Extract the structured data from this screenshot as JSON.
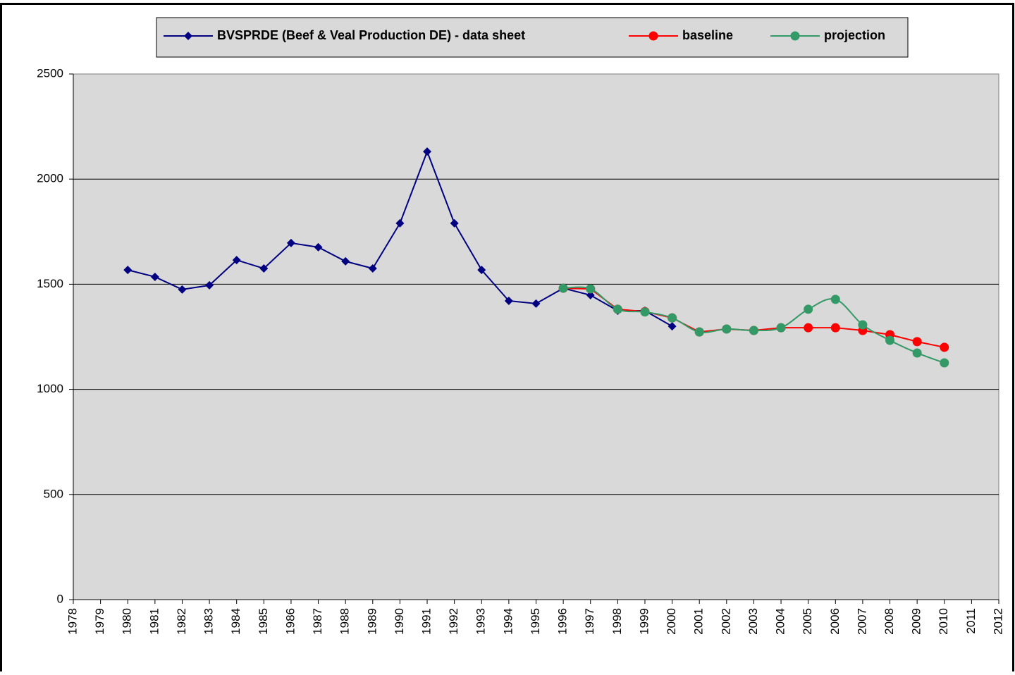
{
  "chart_data": {
    "type": "line",
    "xlim": [
      1978,
      2012
    ],
    "xticks": [
      1978,
      1979,
      1980,
      1981,
      1982,
      1983,
      1984,
      1985,
      1986,
      1987,
      1988,
      1989,
      1990,
      1991,
      1992,
      1993,
      1994,
      1995,
      1996,
      1997,
      1998,
      1999,
      2000,
      2001,
      2002,
      2003,
      2004,
      2005,
      2006,
      2007,
      2008,
      2009,
      2010,
      2011,
      2012
    ],
    "ylim": [
      0,
      2500
    ],
    "yticks": [
      0,
      500,
      1000,
      1500,
      2000,
      2500
    ],
    "grid": true,
    "legend": "top",
    "series": [
      {
        "name": "BVSPRDE (Beef & Veal Production DE) - data sheet",
        "color": "#000080",
        "marker": "diamond",
        "smooth": false,
        "x": [
          1980,
          1981,
          1982,
          1983,
          1984,
          1985,
          1986,
          1987,
          1988,
          1989,
          1990,
          1991,
          1992,
          1993,
          1994,
          1995,
          1996,
          1997,
          1998,
          1999,
          2000
        ],
        "values": [
          1568,
          1535,
          1475,
          1495,
          1615,
          1575,
          1696,
          1676,
          1609,
          1575,
          1790,
          2131,
          1790,
          1568,
          1421,
          1408,
          1481,
          1448,
          1374,
          1374,
          1300
        ]
      },
      {
        "name": "baseline",
        "color": "#ff0000",
        "marker": "circle",
        "smooth": false,
        "x": [
          1996,
          1997,
          1998,
          1999,
          2000,
          2001,
          2002,
          2003,
          2004,
          2005,
          2006,
          2007,
          2008,
          2009,
          2010
        ],
        "values": [
          1481,
          1478,
          1381,
          1370,
          1340,
          1273,
          1287,
          1280,
          1293,
          1293,
          1293,
          1280,
          1260,
          1227,
          1200
        ]
      },
      {
        "name": "projection",
        "color": "#339966",
        "marker": "circle",
        "smooth": true,
        "x": [
          1996,
          1997,
          1998,
          1999,
          2000,
          2001,
          2002,
          2003,
          2004,
          2005,
          2006,
          2007,
          2008,
          2009,
          2010
        ],
        "values": [
          1481,
          1478,
          1381,
          1368,
          1340,
          1273,
          1287,
          1280,
          1293,
          1381,
          1428,
          1307,
          1233,
          1173,
          1126
        ]
      }
    ]
  }
}
